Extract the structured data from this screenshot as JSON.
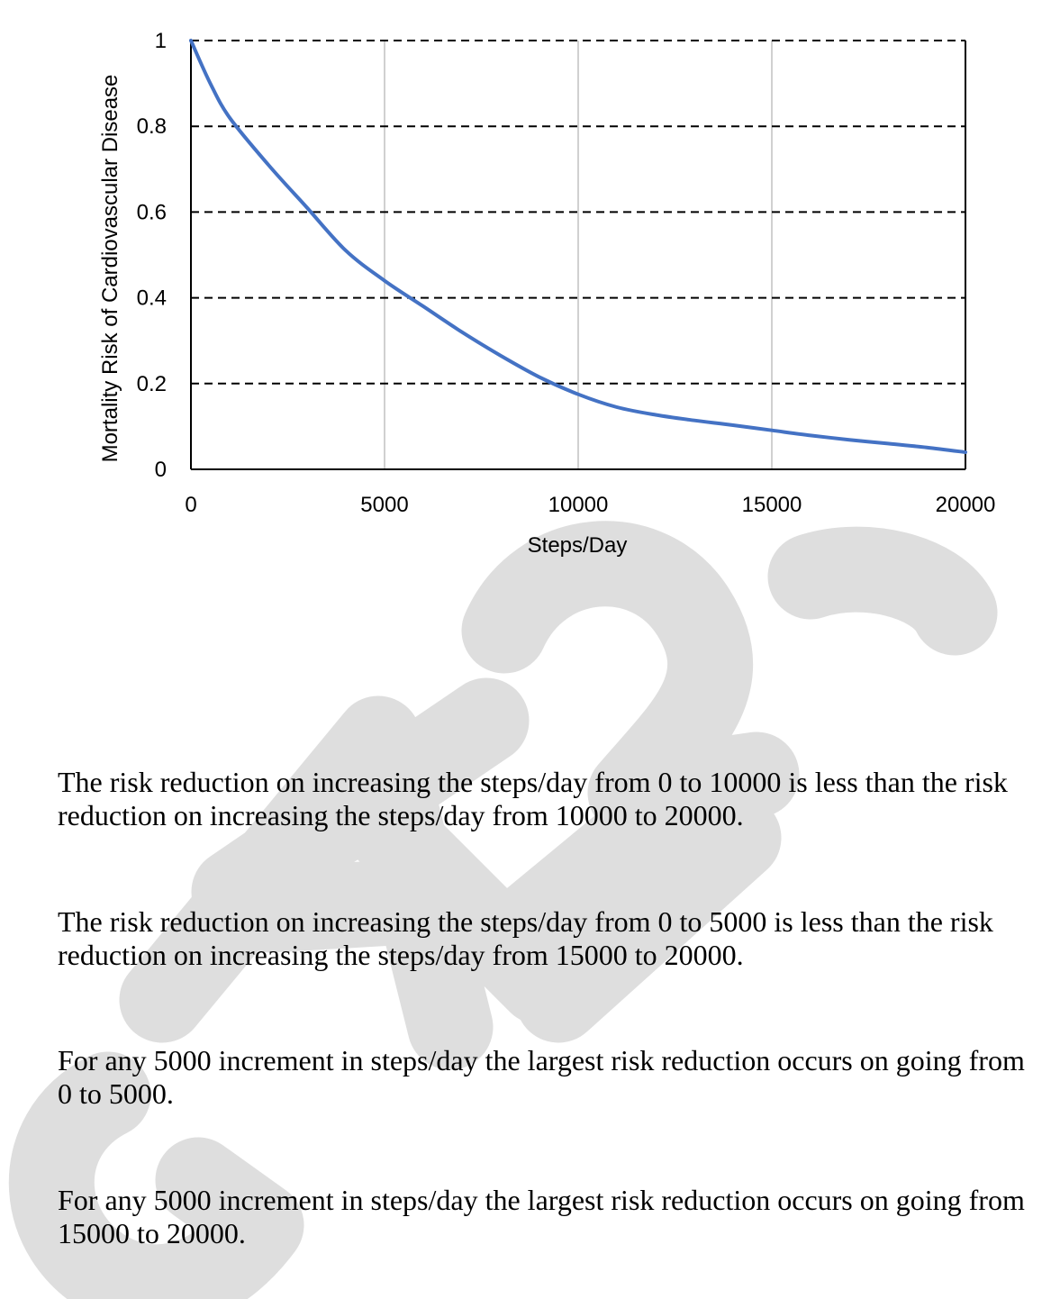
{
  "chart_data": {
    "type": "line",
    "title": "",
    "xlabel": "Steps/Day",
    "ylabel": "Mortality Risk of Cardiovascular Disease",
    "xlim": [
      0,
      20000
    ],
    "ylim": [
      0,
      1
    ],
    "x_ticks": [
      "0",
      "5000",
      "10000",
      "15000",
      "20000"
    ],
    "y_ticks": [
      "0",
      "0.2",
      "0.4",
      "0.6",
      "0.8",
      "1"
    ],
    "grid": {
      "horizontal": "dashed",
      "vertical": "solid-light"
    },
    "legend": "none",
    "line_color": "#4472C4",
    "series": [
      {
        "x": [
          0,
          500,
          1000,
          2000,
          3000,
          4000,
          5000,
          6000,
          7000,
          8000,
          9000,
          10000,
          11000,
          12000,
          13000,
          14000,
          15000,
          16000,
          17000,
          18000,
          19000,
          20000
        ],
        "values": [
          1.0,
          0.9,
          0.82,
          0.71,
          0.61,
          0.51,
          0.44,
          0.38,
          0.32,
          0.265,
          0.215,
          0.175,
          0.145,
          0.127,
          0.114,
          0.103,
          0.091,
          0.079,
          0.069,
          0.06,
          0.051,
          0.04
        ]
      }
    ]
  },
  "options": [
    "The risk reduction on increasing the steps/day from 0 to 10000 is less than the risk\nreduction on increasing the steps/day from 10000 to 20000.",
    "The risk reduction on increasing the steps/day from 0 to 5000 is less than the risk\nreduction on increasing the steps/day from 15000 to 20000.",
    "For any 5000 increment in steps/day the largest risk reduction occurs on going from\n0 to 5000.",
    "For any 5000 increment in steps/day the largest risk reduction occurs on going from\n15000 to 20000."
  ],
  "watermark": {
    "text": "GATE 2024",
    "color": "#d9d9d9"
  }
}
